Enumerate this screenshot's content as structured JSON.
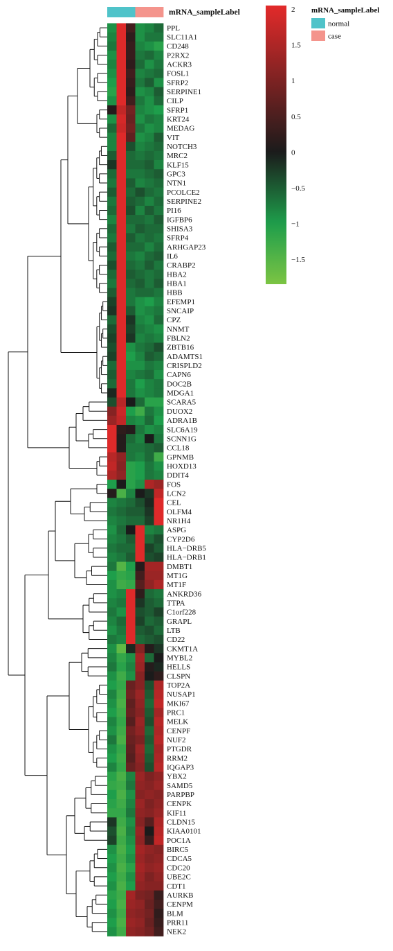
{
  "chart_data": {
    "type": "heatmap",
    "annotation_title": "mRNA_sampleLabel",
    "legend_title": "mRNA_sampleLabel",
    "groups": [
      {
        "name": "normal",
        "color": "#4fc3c9"
      },
      {
        "name": "case",
        "color": "#f4948c"
      }
    ],
    "column_groups": [
      "normal",
      "normal",
      "normal",
      "case",
      "case",
      "case"
    ],
    "color_scale": {
      "ticks": [
        "2",
        "1.5",
        "1",
        "0.5",
        "0",
        "−0.5",
        "−1",
        "−1.5"
      ],
      "tick_values": [
        2,
        1.5,
        1,
        0.5,
        0,
        -0.5,
        -1,
        -1.5
      ],
      "range": [
        -1.85,
        2.05
      ],
      "colors": [
        "#7cc443",
        "#1e9e4b",
        "#1b1b1b",
        "#e32a2a"
      ]
    },
    "rows": [
      "PPL",
      "SLC11A1",
      "CD248",
      "P2RX2",
      "ACKR3",
      "FOSL1",
      "SFRP2",
      "SERPINE1",
      "CILP",
      "SFRP1",
      "KRT24",
      "MEDAG",
      "VIT",
      "NOTCH3",
      "MRC2",
      "KLF15",
      "GPC3",
      "NTN1",
      "PCOLCE2",
      "SERPINE2",
      "PI16",
      "IGFBP6",
      "SHISA3",
      "SFRP4",
      "ARHGAP23",
      "IL6",
      "CRABP2",
      "HBA2",
      "HBA1",
      "HBB",
      "EFEMP1",
      "SNCAIP",
      "CPZ",
      "NNMT",
      "FBLN2",
      "ZBTB16",
      "ADAMTS1",
      "CRISPLD2",
      "CAPN6",
      "DOC2B",
      "MDGA1",
      "SCARA5",
      "DUOX2",
      "ADRA1B",
      "SLC6A19",
      "SCNN1G",
      "CCL18",
      "GPNMB",
      "HOXD13",
      "DDIT4",
      "FOS",
      "LCN2",
      "CEL",
      "OLFM4",
      "NR1H4",
      "ASPG",
      "CYP2D6",
      "HLA−DRB5",
      "HLA−DRB1",
      "DMBT1",
      "MT1G",
      "MT1F",
      "ANKRD36",
      "TTPA",
      "C1orf228",
      "GRAPL",
      "LTB",
      "CD22",
      "CKMT1A",
      "MYBL2",
      "HELLS",
      "CLSPN",
      "TOP2A",
      "NUSAP1",
      "MKI67",
      "PRC1",
      "MELK",
      "CENPF",
      "NUF2",
      "PTGDR",
      "RRM2",
      "IQGAP3",
      "YBX2",
      "SAMD5",
      "PARPBP",
      "CENPK",
      "KIF11",
      "CLDN15",
      "KIAA0101",
      "POC1A",
      "BIRC5",
      "CDCA5",
      "CDC20",
      "UBE2C",
      "CDT1",
      "AURKB",
      "CENPM",
      "BLM",
      "PRR11",
      "NEK2"
    ],
    "values": [
      [
        -0.9,
        2.0,
        0.4,
        -0.9,
        -0.8,
        -0.6
      ],
      [
        -0.8,
        2.0,
        0.2,
        -0.9,
        -0.7,
        -0.7
      ],
      [
        -0.7,
        2.0,
        0.3,
        -0.8,
        -0.9,
        -1.1
      ],
      [
        -0.9,
        2.0,
        0.3,
        -0.7,
        -0.6,
        -0.8
      ],
      [
        -0.8,
        2.0,
        0.2,
        -0.6,
        -0.9,
        -0.7
      ],
      [
        -0.9,
        2.0,
        0.4,
        -0.8,
        -0.7,
        -0.6
      ],
      [
        -1.0,
        2.0,
        0.3,
        -0.7,
        -0.5,
        -0.9
      ],
      [
        -1.1,
        2.0,
        0.2,
        -0.9,
        -0.8,
        -0.5
      ],
      [
        -0.9,
        2.0,
        0.4,
        -0.7,
        -0.9,
        -0.6
      ],
      [
        0.1,
        1.7,
        0.9,
        -0.8,
        -0.9,
        -1.0
      ],
      [
        -0.9,
        1.9,
        0.8,
        -0.9,
        -0.7,
        -0.8
      ],
      [
        -0.6,
        1.8,
        0.9,
        -0.7,
        -0.9,
        -0.8
      ],
      [
        -0.8,
        2.0,
        0.7,
        -0.9,
        -0.8,
        -0.5
      ],
      [
        -0.8,
        2.0,
        -0.4,
        -0.8,
        -0.7,
        -0.6
      ],
      [
        -0.5,
        2.0,
        -0.6,
        -0.7,
        -0.6,
        -0.7
      ],
      [
        -0.2,
        2.0,
        -0.6,
        -0.6,
        -0.5,
        -0.8
      ],
      [
        -0.6,
        2.0,
        -0.7,
        -0.7,
        -0.6,
        -0.5
      ],
      [
        -0.7,
        2.0,
        -0.5,
        -0.8,
        -0.7,
        -0.6
      ],
      [
        -0.5,
        2.0,
        -0.6,
        -0.4,
        -0.6,
        -0.7
      ],
      [
        -0.7,
        2.0,
        -0.5,
        -0.6,
        -0.8,
        -0.6
      ],
      [
        -0.6,
        2.0,
        -0.4,
        -0.8,
        -0.5,
        -0.7
      ],
      [
        -0.8,
        2.0,
        -0.6,
        -0.6,
        -0.7,
        -0.5
      ],
      [
        -0.6,
        2.0,
        -0.7,
        -0.5,
        -0.6,
        -0.6
      ],
      [
        -0.7,
        2.0,
        -0.5,
        -0.7,
        -0.6,
        -0.7
      ],
      [
        -0.5,
        2.0,
        -0.6,
        -0.6,
        -0.8,
        -0.6
      ],
      [
        -0.6,
        2.0,
        -0.7,
        -0.8,
        -0.6,
        -0.5
      ],
      [
        -0.4,
        2.0,
        -0.6,
        -0.7,
        -0.5,
        -0.7
      ],
      [
        -0.6,
        2.0,
        -0.5,
        -0.6,
        -0.7,
        -0.6
      ],
      [
        -0.7,
        2.0,
        -0.6,
        -0.5,
        -0.7,
        -0.5
      ],
      [
        -0.5,
        2.0,
        -0.7,
        -0.6,
        -0.6,
        -0.7
      ],
      [
        -0.3,
        2.0,
        -0.7,
        -0.9,
        -1.0,
        -0.8
      ],
      [
        -0.2,
        2.0,
        -0.5,
        -0.9,
        -0.8,
        -0.7
      ],
      [
        -0.6,
        2.0,
        -0.2,
        -0.8,
        -0.9,
        -0.6
      ],
      [
        -0.4,
        2.0,
        -0.3,
        -0.7,
        -0.8,
        -0.9
      ],
      [
        -0.3,
        2.0,
        -0.2,
        -0.8,
        -0.7,
        -0.8
      ],
      [
        -0.4,
        2.0,
        -0.9,
        -0.7,
        -0.6,
        -0.4
      ],
      [
        -0.3,
        2.0,
        -1.0,
        -0.8,
        -0.5,
        -0.6
      ],
      [
        -0.6,
        2.0,
        -0.9,
        -0.9,
        -0.7,
        -0.8
      ],
      [
        -0.5,
        2.0,
        -0.8,
        -0.7,
        -0.6,
        -0.9
      ],
      [
        -0.6,
        2.0,
        -0.7,
        -1.0,
        -0.8,
        -0.7
      ],
      [
        -0.1,
        2.0,
        -0.7,
        -0.9,
        -0.8,
        -0.7
      ],
      [
        -0.4,
        1.6,
        0.0,
        -0.6,
        -1.1,
        -1.1
      ],
      [
        1.1,
        1.8,
        -1.0,
        -1.3,
        -0.7,
        -0.9
      ],
      [
        1.3,
        1.7,
        -0.8,
        -0.9,
        -0.6,
        -1.0
      ],
      [
        2.0,
        0.2,
        0.1,
        -0.7,
        -0.9,
        -0.8
      ],
      [
        2.0,
        0.1,
        -0.6,
        -0.8,
        0.0,
        -0.7
      ],
      [
        2.0,
        0.1,
        -0.7,
        -0.7,
        -0.6,
        -0.5
      ],
      [
        1.6,
        1.2,
        -0.7,
        -0.8,
        -0.6,
        -1.3
      ],
      [
        1.7,
        1.1,
        -1.1,
        -1.0,
        -0.7,
        -0.9
      ],
      [
        1.5,
        1.2,
        -1.1,
        -1.0,
        -0.7,
        -0.8
      ],
      [
        -1.0,
        0.0,
        -1.1,
        -0.9,
        1.5,
        1.3
      ],
      [
        0.1,
        -1.4,
        -0.8,
        0.0,
        -0.2,
        1.7
      ],
      [
        -0.8,
        -0.7,
        -0.6,
        -0.4,
        -0.1,
        2.0
      ],
      [
        -0.7,
        -0.6,
        -0.5,
        -0.5,
        -0.2,
        2.0
      ],
      [
        -0.8,
        -0.7,
        -0.6,
        -0.6,
        -0.3,
        2.0
      ],
      [
        -0.9,
        -0.6,
        0.0,
        2.0,
        -0.8,
        -0.7
      ],
      [
        -0.8,
        -0.7,
        -0.5,
        2.0,
        -0.6,
        -0.4
      ],
      [
        -0.7,
        -0.6,
        -0.6,
        2.0,
        -0.3,
        -0.5
      ],
      [
        -0.8,
        -0.7,
        -0.5,
        2.0,
        -0.4,
        -0.3
      ],
      [
        -0.7,
        -1.5,
        -1.0,
        0.1,
        1.4,
        1.4
      ],
      [
        -1.0,
        -1.2,
        -1.1,
        0.4,
        1.3,
        1.3
      ],
      [
        -0.9,
        -1.3,
        -1.2,
        0.6,
        1.2,
        1.5
      ],
      [
        -0.9,
        -0.8,
        2.0,
        0.2,
        -0.6,
        -0.7
      ],
      [
        -0.8,
        -0.7,
        2.0,
        -0.2,
        -0.5,
        -0.6
      ],
      [
        -0.7,
        -0.9,
        2.0,
        -0.4,
        -0.5,
        -0.3
      ],
      [
        -0.8,
        -0.6,
        2.0,
        -0.3,
        -0.6,
        -0.5
      ],
      [
        -0.9,
        -0.7,
        2.0,
        -0.5,
        -0.4,
        -0.6
      ],
      [
        -0.7,
        -0.8,
        2.0,
        -0.6,
        -0.5,
        -0.4
      ],
      [
        -0.9,
        -1.6,
        -0.1,
        1.1,
        0.1,
        -0.2
      ],
      [
        -0.8,
        -1.2,
        -0.9,
        1.4,
        -0.6,
        0.0
      ],
      [
        -0.7,
        -1.1,
        -0.8,
        1.3,
        0.1,
        -0.1
      ],
      [
        -0.9,
        -1.3,
        -0.9,
        1.1,
        0.0,
        0.2
      ],
      [
        -1.0,
        -1.2,
        0.8,
        1.1,
        -0.4,
        1.5
      ],
      [
        -0.8,
        -1.3,
        0.9,
        1.3,
        -0.5,
        1.6
      ],
      [
        -0.9,
        -1.4,
        0.7,
        1.2,
        -0.6,
        1.7
      ],
      [
        -1.0,
        -1.3,
        0.8,
        1.1,
        -0.5,
        1.4
      ],
      [
        -0.8,
        -1.2,
        0.6,
        1.3,
        -0.4,
        1.6
      ],
      [
        -0.9,
        -1.3,
        0.9,
        1.2,
        -0.6,
        1.5
      ],
      [
        -0.7,
        -1.4,
        0.8,
        1.0,
        -0.5,
        1.6
      ],
      [
        -0.9,
        -1.2,
        0.7,
        1.3,
        -0.6,
        1.4
      ],
      [
        -1.0,
        -1.3,
        0.6,
        1.2,
        -0.5,
        1.5
      ],
      [
        -0.8,
        -1.2,
        0.8,
        1.1,
        -0.4,
        1.6
      ],
      [
        -1.1,
        -1.4,
        -0.8,
        1.3,
        1.0,
        1.2
      ],
      [
        -1.2,
        -1.3,
        -0.7,
        1.2,
        1.1,
        1.3
      ],
      [
        -1.0,
        -1.4,
        -0.9,
        1.1,
        1.2,
        1.1
      ],
      [
        -1.1,
        -1.3,
        -0.8,
        1.3,
        1.0,
        1.2
      ],
      [
        -1.2,
        -1.2,
        -0.7,
        1.2,
        1.1,
        1.3
      ],
      [
        -0.2,
        -1.3,
        -0.9,
        1.1,
        0.6,
        1.5
      ],
      [
        -0.4,
        -1.4,
        -0.8,
        1.3,
        0.0,
        1.6
      ],
      [
        -0.3,
        -1.3,
        -0.9,
        1.2,
        0.3,
        1.7
      ],
      [
        -0.9,
        -1.4,
        -1.0,
        1.4,
        1.2,
        1.1
      ],
      [
        -1.0,
        -1.3,
        -0.9,
        1.3,
        1.1,
        1.2
      ],
      [
        -0.9,
        -1.4,
        -1.1,
        1.4,
        1.2,
        1.3
      ],
      [
        -1.0,
        -1.3,
        -0.9,
        1.3,
        1.0,
        1.2
      ],
      [
        -0.9,
        -1.4,
        -1.0,
        1.2,
        1.1,
        1.1
      ],
      [
        -1.1,
        -1.3,
        1.4,
        1.0,
        0.9,
        0.3
      ],
      [
        -1.0,
        -1.4,
        1.3,
        1.2,
        0.8,
        0.4
      ],
      [
        -0.9,
        -1.3,
        1.2,
        1.1,
        0.9,
        0.2
      ],
      [
        -1.0,
        -1.4,
        1.3,
        1.2,
        0.8,
        0.3
      ],
      [
        -0.9,
        -1.3,
        1.2,
        1.1,
        0.9,
        0.4
      ]
    ]
  }
}
